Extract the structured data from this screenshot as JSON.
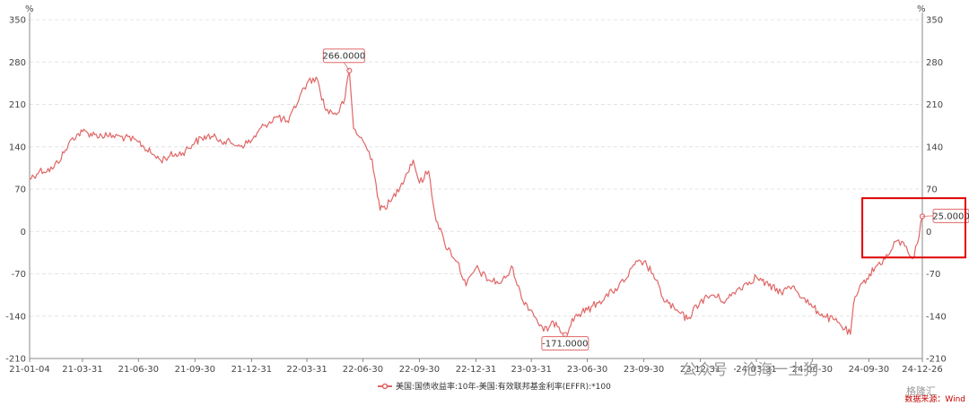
{
  "chart_data": {
    "type": "line",
    "unit_left": "%",
    "unit_right": "%",
    "ylim": [
      -210,
      350
    ],
    "y_ticks": [
      350,
      280,
      210,
      140,
      70,
      0,
      -70,
      -140,
      -210
    ],
    "x_tick_labels": [
      "21-01-04",
      "21-03-31",
      "21-06-30",
      "21-09-30",
      "21-12-31",
      "22-03-31",
      "22-06-30",
      "22-09-30",
      "22-12-31",
      "23-03-31",
      "23-06-30",
      "23-09-30",
      "23-12-31",
      "24-03-31",
      "24-06-30",
      "24-09-30",
      "24-12-26"
    ],
    "grid": true,
    "legend_position": "bottom-center",
    "series": [
      {
        "name": "美国:国债收益率:10年-美国:有效联邦基金利率(EFFR):*100",
        "color": "#e06666",
        "points": [
          [
            "21-01-04",
            87
          ],
          [
            "21-01-20",
            100
          ],
          [
            "21-02-10",
            103
          ],
          [
            "21-03-01",
            130
          ],
          [
            "21-03-15",
            155
          ],
          [
            "21-03-31",
            165
          ],
          [
            "21-04-20",
            160
          ],
          [
            "21-05-10",
            158
          ],
          [
            "21-06-01",
            157
          ],
          [
            "21-06-30",
            148
          ],
          [
            "21-07-20",
            130
          ],
          [
            "21-08-05",
            118
          ],
          [
            "21-08-20",
            125
          ],
          [
            "21-09-10",
            130
          ],
          [
            "21-09-30",
            148
          ],
          [
            "21-10-20",
            158
          ],
          [
            "21-11-10",
            152
          ],
          [
            "21-11-30",
            145
          ],
          [
            "21-12-15",
            142
          ],
          [
            "21-12-31",
            150
          ],
          [
            "22-01-20",
            175
          ],
          [
            "22-02-10",
            190
          ],
          [
            "22-03-01",
            180
          ],
          [
            "22-03-20",
            225
          ],
          [
            "22-03-31",
            245
          ],
          [
            "22-04-15",
            255
          ],
          [
            "22-05-01",
            200
          ],
          [
            "22-05-20",
            195
          ],
          [
            "22-06-01",
            220
          ],
          [
            "22-06-08",
            266
          ],
          [
            "22-06-15",
            170
          ],
          [
            "22-06-30",
            150
          ],
          [
            "22-07-15",
            120
          ],
          [
            "22-07-28",
            35
          ],
          [
            "22-08-15",
            50
          ],
          [
            "22-09-01",
            80
          ],
          [
            "22-09-20",
            118
          ],
          [
            "22-09-30",
            80
          ],
          [
            "22-10-15",
            100
          ],
          [
            "22-10-25",
            30
          ],
          [
            "22-11-10",
            -20
          ],
          [
            "22-12-01",
            -50
          ],
          [
            "22-12-15",
            -90
          ],
          [
            "22-12-31",
            -60
          ],
          [
            "23-01-20",
            -80
          ],
          [
            "23-02-10",
            -85
          ],
          [
            "23-03-01",
            -60
          ],
          [
            "23-03-15",
            -110
          ],
          [
            "23-03-31",
            -130
          ],
          [
            "23-04-20",
            -165
          ],
          [
            "23-05-10",
            -150
          ],
          [
            "23-05-25",
            -171
          ],
          [
            "23-06-10",
            -140
          ],
          [
            "23-06-30",
            -130
          ],
          [
            "23-07-20",
            -115
          ],
          [
            "23-08-10",
            -100
          ],
          [
            "23-08-31",
            -80
          ],
          [
            "23-09-15",
            -55
          ],
          [
            "23-09-30",
            -50
          ],
          [
            "23-10-15",
            -70
          ],
          [
            "23-10-31",
            -110
          ],
          [
            "23-11-20",
            -130
          ],
          [
            "23-12-10",
            -145
          ],
          [
            "23-12-31",
            -115
          ],
          [
            "24-01-20",
            -105
          ],
          [
            "24-02-10",
            -115
          ],
          [
            "24-03-01",
            -95
          ],
          [
            "24-03-31",
            -75
          ],
          [
            "24-04-20",
            -90
          ],
          [
            "24-05-10",
            -100
          ],
          [
            "24-05-31",
            -90
          ],
          [
            "24-06-15",
            -110
          ],
          [
            "24-06-30",
            -125
          ],
          [
            "24-07-20",
            -140
          ],
          [
            "24-08-10",
            -150
          ],
          [
            "24-08-31",
            -170
          ],
          [
            "24-09-05",
            -120
          ],
          [
            "24-09-20",
            -85
          ],
          [
            "24-10-10",
            -60
          ],
          [
            "24-10-31",
            -40
          ],
          [
            "24-11-15",
            -15
          ],
          [
            "24-11-30",
            -25
          ],
          [
            "24-12-10",
            -45
          ],
          [
            "24-12-18",
            -20
          ],
          [
            "24-12-26",
            25
          ]
        ]
      }
    ],
    "annotations": [
      {
        "label": "266.0000",
        "x": "22-06-08",
        "y": 266
      },
      {
        "label": "-171.0000",
        "x": "23-05-25",
        "y": -171
      },
      {
        "label": "25.0000",
        "x": "24-12-26",
        "y": 25
      }
    ],
    "highlight_box": {
      "x_from": "24-10-01",
      "x_to": "24-12-26",
      "y_from": -43,
      "y_to": 55,
      "color": "#e00000"
    },
    "source": "数据来源：Wind"
  },
  "watermark": "公众号 · 沧海一土狗",
  "watermark2": "格隆汇"
}
